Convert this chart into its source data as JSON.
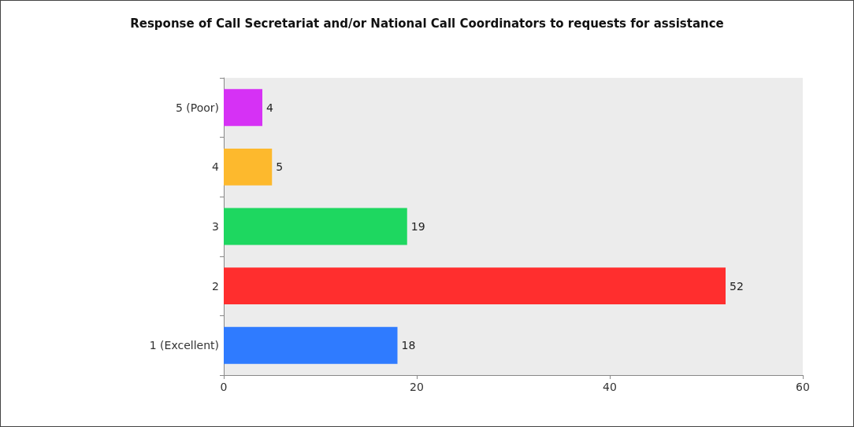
{
  "chart_data": {
    "type": "bar",
    "orientation": "horizontal",
    "title": "Response of Call Secretariat and/or National Call Coordinators to requests for assistance",
    "categories": [
      "5 (Poor)",
      "4",
      "3",
      "2",
      "1 (Excellent)"
    ],
    "values": [
      4,
      5,
      19,
      52,
      18
    ],
    "colors": [
      "#d631f5",
      "#fdb92d",
      "#1ed760",
      "#ff2e2e",
      "#2f7bff"
    ],
    "xlim": [
      0,
      60
    ],
    "xticks": [
      0,
      20,
      40,
      60
    ],
    "data_labels": true,
    "grid": false
  }
}
